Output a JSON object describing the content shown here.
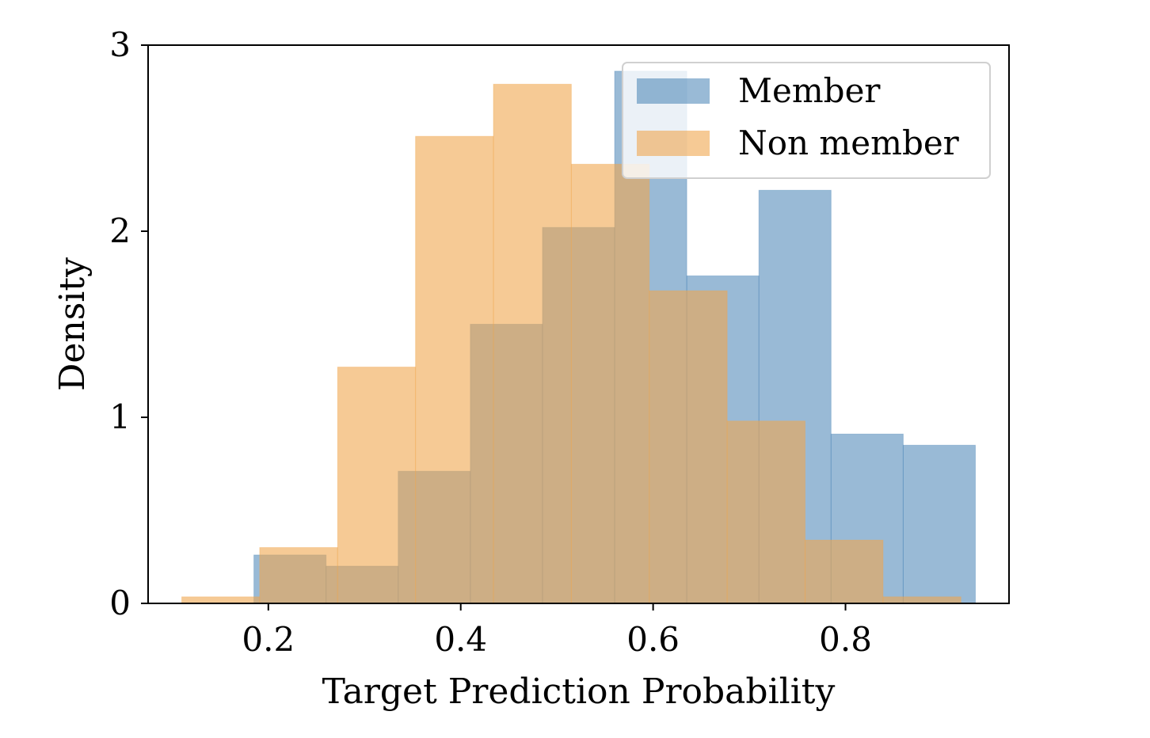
{
  "chart_data": {
    "type": "histogram",
    "title": "",
    "xlabel": "Target Prediction Probability",
    "ylabel": "Density",
    "xlim": [
      0.075,
      0.97
    ],
    "ylim": [
      0,
      3
    ],
    "xticks": [
      0.2,
      0.4,
      0.6,
      0.8
    ],
    "xtick_labels": [
      "0.2",
      "0.4",
      "0.6",
      "0.8"
    ],
    "yticks": [
      0,
      1,
      2,
      3
    ],
    "ytick_labels": [
      "0",
      "1",
      "2",
      "3"
    ],
    "grid": false,
    "legend_position": "top-right",
    "series": [
      {
        "name": "Member",
        "color": "#4682b4",
        "alpha": 0.55,
        "bin_edges": [
          0.185,
          0.26,
          0.335,
          0.41,
          0.485,
          0.56,
          0.635,
          0.71,
          0.785,
          0.86,
          0.935
        ],
        "values": [
          0.26,
          0.2,
          0.71,
          1.5,
          2.02,
          2.86,
          1.76,
          2.22,
          0.91,
          0.85
        ]
      },
      {
        "name": "Non member",
        "color": "#f0a64e",
        "alpha": 0.6,
        "bin_edges": [
          0.11,
          0.191,
          0.272,
          0.353,
          0.434,
          0.515,
          0.596,
          0.677,
          0.758,
          0.839,
          0.92
        ],
        "values": [
          0.035,
          0.3,
          1.27,
          2.51,
          2.79,
          2.36,
          1.68,
          0.98,
          0.34,
          0.035
        ]
      }
    ]
  }
}
